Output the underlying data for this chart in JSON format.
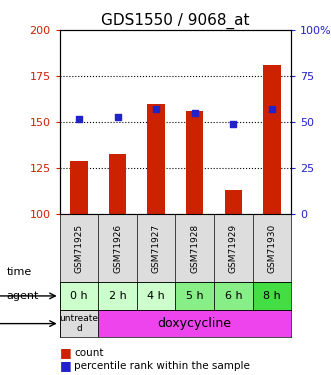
{
  "title": "GDS1550 / 9068_at",
  "categories": [
    "GSM71925",
    "GSM71926",
    "GSM71927",
    "GSM71928",
    "GSM71929",
    "GSM71930"
  ],
  "bar_values": [
    129,
    133,
    160,
    156,
    113,
    181
  ],
  "bar_bottom": 100,
  "percentile_values": [
    52,
    53,
    57,
    55,
    49,
    57
  ],
  "bar_color": "#cc2200",
  "percentile_color": "#2222cc",
  "left_ylim": [
    100,
    200
  ],
  "right_ylim": [
    0,
    100
  ],
  "left_yticks": [
    100,
    125,
    150,
    175,
    200
  ],
  "right_yticks": [
    0,
    25,
    50,
    75,
    100
  ],
  "right_yticklabels": [
    "0",
    "25",
    "50",
    "75",
    "100%"
  ],
  "time_labels": [
    "0 h",
    "2 h",
    "4 h",
    "5 h",
    "6 h",
    "8 h"
  ],
  "time_colors": [
    "#ccffcc",
    "#ccffcc",
    "#ccffcc",
    "#88ee88",
    "#88ee88",
    "#44dd44"
  ],
  "agent_labels": [
    "untreated",
    "doxycycline",
    "doxycycline",
    "doxycycline",
    "doxycycline",
    "doxycycline"
  ],
  "agent_color_untreated": "#dddddd",
  "agent_color_doxy": "#ee44ee",
  "legend_count_label": "count",
  "legend_pct_label": "percentile rank within the sample",
  "grid_color": "#000000",
  "plot_bg_color": "#ffffff",
  "left_axis_color": "#cc2200",
  "right_axis_color": "#2222cc"
}
